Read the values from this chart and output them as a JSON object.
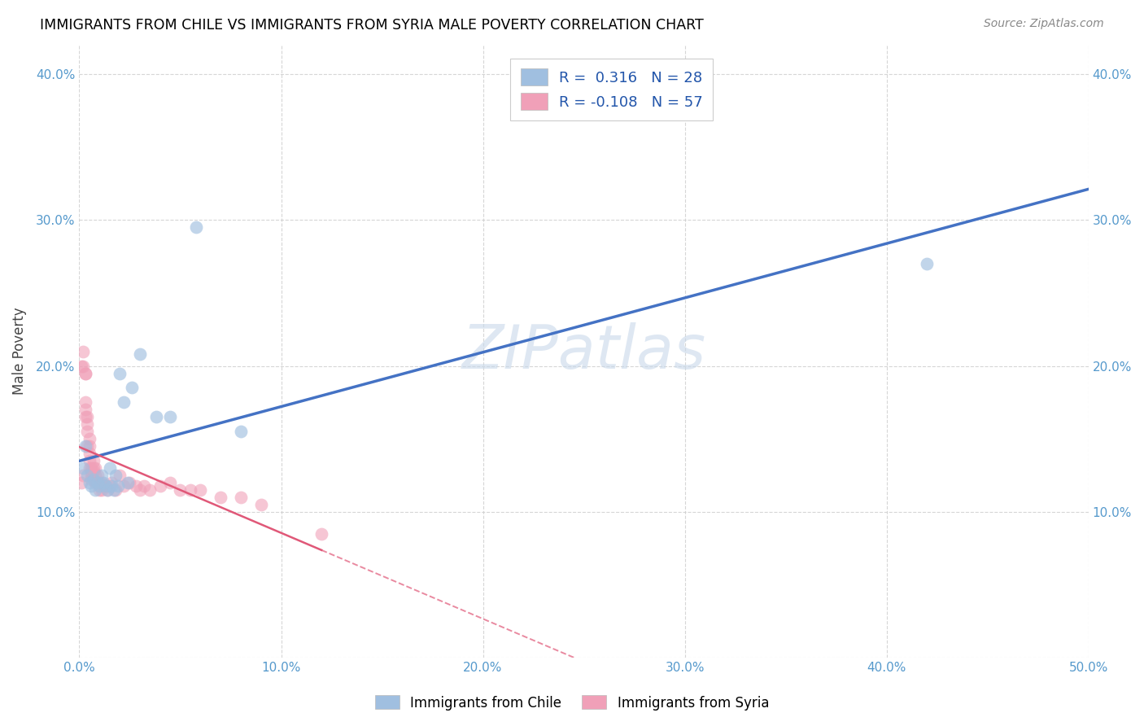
{
  "title": "IMMIGRANTS FROM CHILE VS IMMIGRANTS FROM SYRIA MALE POVERTY CORRELATION CHART",
  "source": "Source: ZipAtlas.com",
  "ylabel": "Male Poverty",
  "xlim": [
    0.0,
    0.5
  ],
  "ylim": [
    0.0,
    0.42
  ],
  "xticks": [
    0.0,
    0.1,
    0.2,
    0.3,
    0.4,
    0.5
  ],
  "yticks": [
    0.0,
    0.1,
    0.2,
    0.3,
    0.4
  ],
  "xticklabels": [
    "0.0%",
    "10.0%",
    "20.0%",
    "30.0%",
    "40.0%",
    "50.0%"
  ],
  "yticklabels": [
    "",
    "10.0%",
    "20.0%",
    "30.0%",
    "40.0%"
  ],
  "watermark": "ZIPatlas",
  "chile_color": "#a0bfe0",
  "syria_color": "#f0a0b8",
  "chile_line_color": "#4472c4",
  "syria_line_color": "#e05878",
  "background_color": "#ffffff",
  "grid_color": "#cccccc",
  "chile_x": [
    0.002,
    0.003,
    0.004,
    0.005,
    0.006,
    0.007,
    0.008,
    0.009,
    0.01,
    0.011,
    0.012,
    0.013,
    0.014,
    0.015,
    0.016,
    0.017,
    0.018,
    0.019,
    0.02,
    0.022,
    0.024,
    0.026,
    0.03,
    0.038,
    0.045,
    0.058,
    0.08,
    0.42
  ],
  "chile_y": [
    0.13,
    0.145,
    0.125,
    0.12,
    0.118,
    0.122,
    0.115,
    0.12,
    0.118,
    0.125,
    0.12,
    0.118,
    0.115,
    0.13,
    0.118,
    0.115,
    0.125,
    0.118,
    0.195,
    0.175,
    0.12,
    0.185,
    0.208,
    0.165,
    0.165,
    0.295,
    0.155,
    0.27
  ],
  "syria_x": [
    0.001,
    0.001,
    0.002,
    0.002,
    0.002,
    0.003,
    0.003,
    0.003,
    0.003,
    0.003,
    0.004,
    0.004,
    0.004,
    0.004,
    0.005,
    0.005,
    0.005,
    0.005,
    0.005,
    0.006,
    0.006,
    0.006,
    0.006,
    0.007,
    0.007,
    0.007,
    0.008,
    0.008,
    0.008,
    0.009,
    0.009,
    0.01,
    0.01,
    0.011,
    0.011,
    0.012,
    0.013,
    0.014,
    0.015,
    0.016,
    0.018,
    0.02,
    0.022,
    0.025,
    0.028,
    0.03,
    0.032,
    0.035,
    0.04,
    0.045,
    0.05,
    0.055,
    0.06,
    0.07,
    0.08,
    0.09,
    0.12
  ],
  "syria_y": [
    0.12,
    0.2,
    0.125,
    0.2,
    0.21,
    0.195,
    0.195,
    0.175,
    0.17,
    0.165,
    0.165,
    0.16,
    0.155,
    0.145,
    0.15,
    0.145,
    0.14,
    0.135,
    0.13,
    0.13,
    0.128,
    0.125,
    0.122,
    0.135,
    0.13,
    0.128,
    0.13,
    0.125,
    0.12,
    0.125,
    0.12,
    0.12,
    0.115,
    0.12,
    0.115,
    0.118,
    0.118,
    0.115,
    0.118,
    0.12,
    0.115,
    0.125,
    0.118,
    0.12,
    0.118,
    0.115,
    0.118,
    0.115,
    0.118,
    0.12,
    0.115,
    0.115,
    0.115,
    0.11,
    0.11,
    0.105,
    0.085
  ]
}
